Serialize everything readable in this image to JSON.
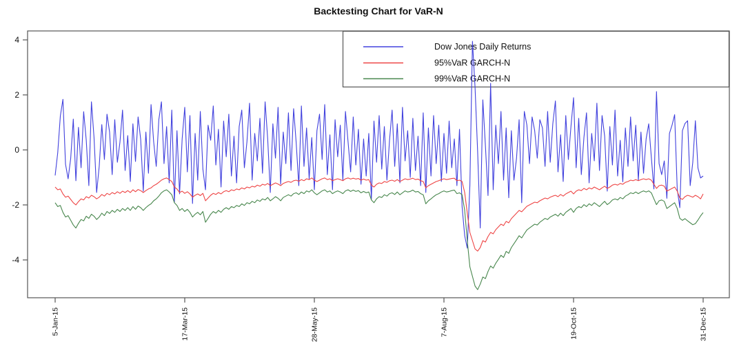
{
  "figure": {
    "title": "Backtesting Chart for VaR-N"
  },
  "chart_data": {
    "type": "line",
    "title": "Backtesting Chart for VaR-N",
    "grid": false,
    "legend_position": "top-right",
    "axis_color": "#555555",
    "text_color": "#111111",
    "ylim": [
      -5.4,
      4.35
    ],
    "y_ticks": [
      4,
      2,
      0,
      -2,
      -4
    ],
    "x_ticks": [
      {
        "day": 0,
        "label": "5-Jan-15"
      },
      {
        "day": 50,
        "label": "17-Mar-15"
      },
      {
        "day": 100,
        "label": "28-May-15"
      },
      {
        "day": 150,
        "label": "7-Aug-15"
      },
      {
        "day": 200,
        "label": "19-Oct-15"
      },
      {
        "day": 250,
        "label": "31-Dec-15"
      }
    ],
    "series": [
      {
        "key": "dow_jones",
        "name": "Dow Jones Daily Returns",
        "color": "#4040dd",
        "values": [
          -0.93,
          -0.1,
          1.23,
          1.84,
          -0.52,
          -1.05,
          -0.31,
          1.12,
          -1.12,
          0.82,
          -0.65,
          1.39,
          0.35,
          -1.3,
          1.75,
          0.45,
          -1.55,
          -0.6,
          0.92,
          -0.35,
          1.3,
          0.65,
          -0.9,
          1.1,
          -0.45,
          0.28,
          1.45,
          -0.75,
          0.52,
          -1.15,
          0.95,
          -0.42,
          1.2,
          0.38,
          -1.5,
          0.65,
          -0.85,
          1.65,
          0.3,
          -0.6,
          1.1,
          1.75,
          -0.5,
          0.85,
          -1.2,
          1.45,
          -1.9,
          0.7,
          -1.6,
          0.4,
          1.55,
          -0.8,
          1.25,
          -1.95,
          0.6,
          -1.1,
          1.4,
          -0.7,
          -1.45,
          0.9,
          0.35,
          1.6,
          -0.55,
          0.75,
          -1.35,
          1.05,
          -0.25,
          1.3,
          -0.95,
          0.5,
          -1.2,
          0.85,
          1.45,
          -0.65,
          0.3,
          1.7,
          -1.1,
          0.6,
          -0.4,
          1.15,
          -0.85,
          1.75,
          0.4,
          -1.55,
          0.95,
          -0.3,
          1.55,
          -1.25,
          0.65,
          -0.5,
          1.35,
          -0.75,
          1.5,
          0.25,
          -1.3,
          1.6,
          -0.6,
          0.8,
          -1.05,
          0.45,
          -1.45,
          0.7,
          1.3,
          -0.35,
          1.65,
          -0.9,
          0.55,
          -1.45,
          1.1,
          -0.25,
          0.9,
          -1.1,
          1.4,
          0.3,
          -0.8,
          1.2,
          -0.55,
          0.75,
          -1.25,
          0.4,
          -0.95,
          0.6,
          -1.8,
          1.05,
          -0.45,
          1.25,
          -0.7,
          0.85,
          -1.1,
          0.35,
          1.45,
          -0.6,
          0.95,
          -1.2,
          1.55,
          -0.4,
          0.7,
          -1.0,
          1.15,
          -0.75,
          0.5,
          -1.3,
          1.35,
          -1.55,
          0.8,
          -0.95,
          1.25,
          -0.5,
          0.9,
          -1.15,
          0.6,
          -0.85,
          1.05,
          -0.65,
          0.4,
          -1.3,
          0.75,
          -2.06,
          -3.12,
          -3.57,
          -1.29,
          3.95,
          2.27,
          -0.07,
          -2.84,
          1.82,
          0.14,
          -1.66,
          2.42,
          -1.45,
          0.9,
          -0.5,
          1.4,
          -1.1,
          0.8,
          -1.74,
          0.7,
          -1.1,
          -0.3,
          1.1,
          -1.92,
          1.4,
          0.9,
          -0.5,
          1.2,
          0.7,
          -0.3,
          1.1,
          0.8,
          -0.6,
          1.4,
          -0.45,
          0.95,
          1.78,
          -0.8,
          0.55,
          -1.15,
          1.25,
          -0.35,
          0.85,
          1.9,
          -0.65,
          1.15,
          -0.9,
          0.45,
          1.35,
          -1.2,
          0.6,
          -0.4,
          1.7,
          -0.75,
          1.25,
          0.5,
          -1.5,
          0.85,
          -0.55,
          1.45,
          -0.95,
          0.35,
          -1.16,
          0.8,
          -0.6,
          1.2,
          -0.4,
          0.9,
          -1.1,
          0.65,
          -0.85,
          0.4,
          0.95,
          -0.26,
          -1.42,
          2.12,
          -0.5,
          -0.9,
          -0.4,
          -1.76,
          0.6,
          0.9,
          1.28,
          -1.43,
          -2.1,
          0.7,
          0.96,
          1.06,
          -1.3,
          -0.45,
          1.06,
          -0.66,
          -1.02,
          -0.95
        ]
      },
      {
        "key": "var95",
        "name": "95%VaR GARCH-N",
        "color": "#ee4444",
        "values": [
          -1.35,
          -1.45,
          -1.42,
          -1.6,
          -1.72,
          -1.68,
          -1.8,
          -1.92,
          -2.0,
          -1.88,
          -1.78,
          -1.82,
          -1.7,
          -1.75,
          -1.65,
          -1.7,
          -1.78,
          -1.72,
          -1.62,
          -1.68,
          -1.58,
          -1.63,
          -1.55,
          -1.6,
          -1.52,
          -1.58,
          -1.5,
          -1.55,
          -1.48,
          -1.55,
          -1.45,
          -1.52,
          -1.44,
          -1.48,
          -1.55,
          -1.48,
          -1.42,
          -1.38,
          -1.3,
          -1.25,
          -1.18,
          -1.1,
          -1.05,
          -1.02,
          -1.08,
          -1.15,
          -1.35,
          -1.42,
          -1.55,
          -1.5,
          -1.58,
          -1.52,
          -1.6,
          -1.72,
          -1.65,
          -1.6,
          -1.66,
          -1.58,
          -1.85,
          -1.75,
          -1.65,
          -1.58,
          -1.62,
          -1.55,
          -1.6,
          -1.52,
          -1.48,
          -1.52,
          -1.45,
          -1.48,
          -1.42,
          -1.45,
          -1.38,
          -1.42,
          -1.35,
          -1.38,
          -1.32,
          -1.35,
          -1.28,
          -1.32,
          -1.25,
          -1.28,
          -1.22,
          -1.3,
          -1.25,
          -1.2,
          -1.24,
          -1.3,
          -1.22,
          -1.18,
          -1.15,
          -1.18,
          -1.12,
          -1.1,
          -1.14,
          -1.08,
          -1.12,
          -1.05,
          -1.08,
          -1.02,
          -1.1,
          -1.15,
          -1.1,
          -1.05,
          -1.02,
          -1.08,
          -1.05,
          -1.12,
          -1.08,
          -1.05,
          -1.08,
          -1.12,
          -1.05,
          -1.02,
          -1.06,
          -1.03,
          -1.06,
          -1.04,
          -1.1,
          -1.06,
          -1.1,
          -1.08,
          -1.28,
          -1.35,
          -1.25,
          -1.2,
          -1.22,
          -1.15,
          -1.18,
          -1.12,
          -1.1,
          -1.14,
          -1.08,
          -1.15,
          -1.1,
          -1.05,
          -1.08,
          -1.06,
          -1.03,
          -1.08,
          -1.06,
          -1.12,
          -1.15,
          -1.38,
          -1.3,
          -1.25,
          -1.2,
          -1.15,
          -1.12,
          -1.08,
          -1.05,
          -1.08,
          -1.06,
          -1.04,
          -1.03,
          -1.12,
          -1.1,
          -1.15,
          -1.55,
          -2.3,
          -3.0,
          -3.3,
          -3.6,
          -3.68,
          -3.55,
          -3.3,
          -3.35,
          -3.15,
          -3.0,
          -3.05,
          -2.9,
          -2.8,
          -2.7,
          -2.75,
          -2.6,
          -2.65,
          -2.5,
          -2.4,
          -2.3,
          -2.2,
          -2.25,
          -2.15,
          -2.05,
          -2.0,
          -1.95,
          -1.9,
          -1.92,
          -1.85,
          -1.8,
          -1.75,
          -1.78,
          -1.72,
          -1.68,
          -1.65,
          -1.7,
          -1.62,
          -1.68,
          -1.6,
          -1.55,
          -1.5,
          -1.6,
          -1.5,
          -1.45,
          -1.48,
          -1.4,
          -1.45,
          -1.38,
          -1.42,
          -1.35,
          -1.4,
          -1.45,
          -1.38,
          -1.32,
          -1.4,
          -1.35,
          -1.28,
          -1.25,
          -1.28,
          -1.22,
          -1.25,
          -1.18,
          -1.15,
          -1.1,
          -1.12,
          -1.08,
          -1.12,
          -1.08,
          -1.05,
          -1.08,
          -1.05,
          -1.1,
          -1.25,
          -1.4,
          -1.3,
          -1.28,
          -1.32,
          -1.5,
          -1.45,
          -1.4,
          -1.35,
          -1.5,
          -1.75,
          -1.8,
          -1.7,
          -1.65,
          -1.68,
          -1.72,
          -1.65,
          -1.7,
          -1.78,
          -1.6
        ]
      },
      {
        "key": "var99",
        "name": "99%VaR GARCH-N",
        "color": "#47864c",
        "values": [
          -1.92,
          -2.06,
          -2.02,
          -2.27,
          -2.44,
          -2.39,
          -2.56,
          -2.73,
          -2.84,
          -2.67,
          -2.53,
          -2.58,
          -2.41,
          -2.49,
          -2.34,
          -2.41,
          -2.53,
          -2.44,
          -2.3,
          -2.39,
          -2.24,
          -2.31,
          -2.2,
          -2.27,
          -2.16,
          -2.24,
          -2.13,
          -2.2,
          -2.1,
          -2.2,
          -2.06,
          -2.16,
          -2.04,
          -2.1,
          -2.2,
          -2.1,
          -2.02,
          -1.96,
          -1.85,
          -1.78,
          -1.68,
          -1.56,
          -1.49,
          -1.45,
          -1.53,
          -1.63,
          -1.92,
          -2.02,
          -2.2,
          -2.13,
          -2.24,
          -2.16,
          -2.27,
          -2.44,
          -2.34,
          -2.27,
          -2.36,
          -2.24,
          -2.63,
          -2.49,
          -2.34,
          -2.24,
          -2.3,
          -2.2,
          -2.27,
          -2.16,
          -2.1,
          -2.16,
          -2.06,
          -2.1,
          -2.02,
          -2.06,
          -1.96,
          -2.02,
          -1.92,
          -1.96,
          -1.87,
          -1.92,
          -1.82,
          -1.87,
          -1.78,
          -1.82,
          -1.73,
          -1.85,
          -1.78,
          -1.7,
          -1.76,
          -1.85,
          -1.73,
          -1.68,
          -1.63,
          -1.68,
          -1.59,
          -1.56,
          -1.62,
          -1.53,
          -1.59,
          -1.49,
          -1.53,
          -1.45,
          -1.56,
          -1.63,
          -1.56,
          -1.49,
          -1.45,
          -1.53,
          -1.49,
          -1.59,
          -1.53,
          -1.49,
          -1.53,
          -1.59,
          -1.49,
          -1.45,
          -1.51,
          -1.46,
          -1.51,
          -1.48,
          -1.56,
          -1.51,
          -1.56,
          -1.53,
          -1.82,
          -1.92,
          -1.78,
          -1.7,
          -1.73,
          -1.63,
          -1.68,
          -1.59,
          -1.56,
          -1.62,
          -1.53,
          -1.63,
          -1.56,
          -1.49,
          -1.53,
          -1.51,
          -1.46,
          -1.53,
          -1.51,
          -1.59,
          -1.63,
          -1.96,
          -1.85,
          -1.78,
          -1.7,
          -1.63,
          -1.59,
          -1.53,
          -1.49,
          -1.53,
          -1.51,
          -1.48,
          -1.46,
          -1.59,
          -1.56,
          -1.63,
          -2.2,
          -3.3,
          -4.25,
          -4.6,
          -4.95,
          -5.08,
          -4.88,
          -4.62,
          -4.68,
          -4.42,
          -4.22,
          -4.3,
          -4.12,
          -3.98,
          -3.83,
          -3.91,
          -3.69,
          -3.76,
          -3.55,
          -3.41,
          -3.27,
          -3.12,
          -3.2,
          -3.05,
          -2.91,
          -2.84,
          -2.77,
          -2.7,
          -2.73,
          -2.63,
          -2.56,
          -2.49,
          -2.53,
          -2.44,
          -2.39,
          -2.34,
          -2.41,
          -2.3,
          -2.39,
          -2.27,
          -2.2,
          -2.13,
          -2.27,
          -2.13,
          -2.06,
          -2.1,
          -1.99,
          -2.06,
          -1.96,
          -2.02,
          -1.92,
          -1.99,
          -2.06,
          -1.96,
          -1.87,
          -1.99,
          -1.92,
          -1.82,
          -1.78,
          -1.82,
          -1.73,
          -1.78,
          -1.68,
          -1.63,
          -1.56,
          -1.59,
          -1.53,
          -1.59,
          -1.53,
          -1.49,
          -1.53,
          -1.49,
          -1.56,
          -1.78,
          -1.99,
          -1.85,
          -1.82,
          -1.87,
          -2.13,
          -2.06,
          -1.99,
          -1.92,
          -2.13,
          -2.49,
          -2.56,
          -2.5,
          -2.58,
          -2.65,
          -2.72,
          -2.68,
          -2.55,
          -2.4,
          -2.28
        ]
      }
    ]
  }
}
